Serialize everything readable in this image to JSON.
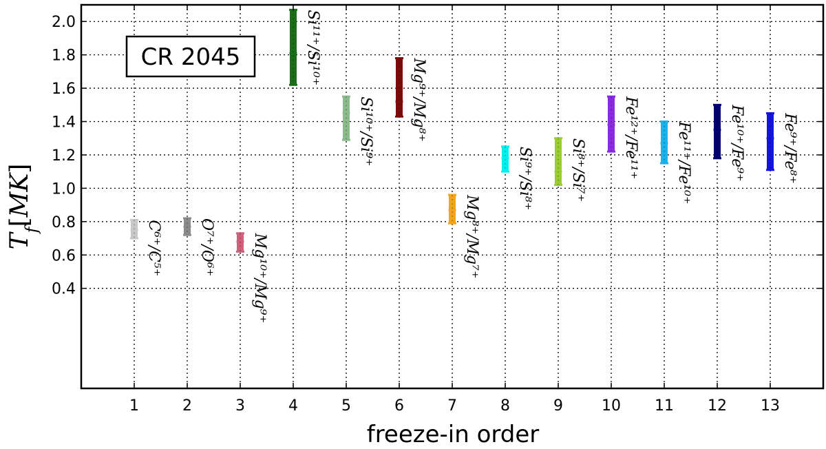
{
  "chart_data": {
    "type": "scatter",
    "xlabel": "freeze-in order",
    "ylabel": "T_f[MK]",
    "xlim": [
      0,
      14
    ],
    "ylim": [
      -0.2,
      2.1
    ],
    "xticks": [
      1,
      2,
      3,
      4,
      5,
      6,
      7,
      8,
      9,
      10,
      11,
      12,
      13
    ],
    "yticks": [
      0.4,
      0.6,
      0.8,
      1.0,
      1.2,
      1.4,
      1.6,
      1.8,
      2.0
    ],
    "ytick_labels": [
      "0.4",
      "0.6",
      "0.8",
      "1.0",
      "1.2",
      "1.4",
      "1.6",
      "1.8",
      "2.0"
    ],
    "grid": true,
    "box_label": "CR 2045",
    "points": [
      {
        "x": 1,
        "y": 0.75,
        "low": 0.7,
        "high": 0.81,
        "color": "#c8c8c8",
        "label": "C⁶⁺/C⁵⁺"
      },
      {
        "x": 2,
        "y": 0.77,
        "low": 0.72,
        "high": 0.82,
        "color": "#8a8a8a",
        "label": "O⁷⁺/O⁶⁺"
      },
      {
        "x": 3,
        "y": 0.68,
        "low": 0.62,
        "high": 0.73,
        "color": "#d0607a",
        "label": "Mg¹⁰⁺/Mg⁹⁺"
      },
      {
        "x": 4,
        "y": 1.81,
        "low": 1.62,
        "high": 2.07,
        "color": "#1a6e1a",
        "label": "Si¹¹⁺/Si¹⁰⁺"
      },
      {
        "x": 5,
        "y": 1.45,
        "low": 1.29,
        "high": 1.55,
        "color": "#8cba8c",
        "label": "Si¹⁰⁺/Si⁹⁺"
      },
      {
        "x": 6,
        "y": 1.52,
        "low": 1.43,
        "high": 1.78,
        "color": "#7a0b0b",
        "label": "Mg⁹⁺/Mg⁸⁺"
      },
      {
        "x": 7,
        "y": 0.87,
        "low": 0.79,
        "high": 0.96,
        "color": "#f5a31a",
        "label": "Mg⁸⁺/Mg⁷⁺"
      },
      {
        "x": 8,
        "y": 1.18,
        "low": 1.1,
        "high": 1.25,
        "color": "#00f0f0",
        "label": "Si⁹⁺/Si⁸⁺"
      },
      {
        "x": 9,
        "y": 1.1,
        "low": 1.02,
        "high": 1.3,
        "color": "#9acd32",
        "label": "Si⁸⁺/Si⁷⁺"
      },
      {
        "x": 10,
        "y": 1.38,
        "low": 1.22,
        "high": 1.55,
        "color": "#8a2be2",
        "label": "Fe¹²⁺/Fe¹¹⁺"
      },
      {
        "x": 11,
        "y": 1.27,
        "low": 1.15,
        "high": 1.4,
        "color": "#18b4ea",
        "label": "Fe¹¹⁺/Fe¹⁰⁺"
      },
      {
        "x": 12,
        "y": 1.35,
        "low": 1.18,
        "high": 1.5,
        "color": "#00006e",
        "label": "Fe¹⁰⁺/Fe⁹⁺"
      },
      {
        "x": 13,
        "y": 1.3,
        "low": 1.11,
        "high": 1.45,
        "color": "#1414e0",
        "label": "Fe⁹⁺/Fe⁸⁺"
      }
    ]
  }
}
